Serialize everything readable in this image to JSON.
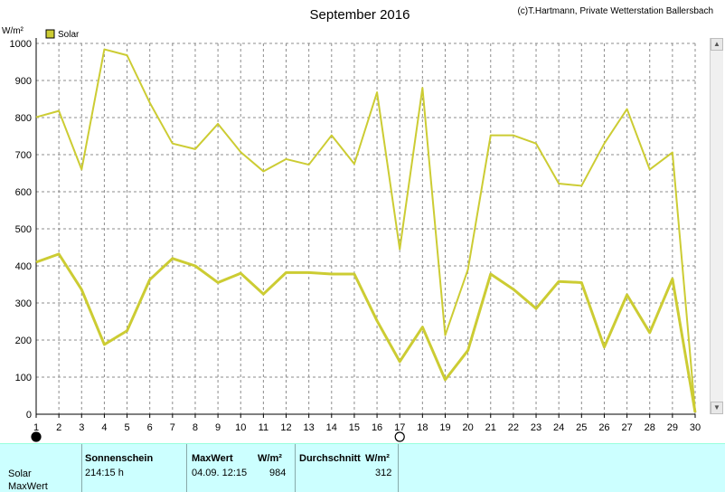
{
  "header": {
    "title": "September 2016",
    "copyright": "(c)T.Hartmann, Private Wetterstation Ballersbach",
    "unit": "W/m²"
  },
  "legend": {
    "label": "Solar",
    "color": "#cccc33"
  },
  "colors": {
    "series": "#cccc33",
    "grid": "#8c8c8c"
  },
  "chart_data": {
    "type": "line",
    "ylabel": "W/m²",
    "ylim": [
      0,
      1000
    ],
    "yticks": [
      0,
      100,
      200,
      300,
      400,
      500,
      600,
      700,
      800,
      900,
      1000
    ],
    "xlim": [
      1,
      30
    ],
    "x": [
      1,
      2,
      3,
      4,
      5,
      6,
      7,
      8,
      9,
      10,
      11,
      12,
      13,
      14,
      15,
      16,
      17,
      18,
      19,
      20,
      21,
      22,
      23,
      24,
      25,
      26,
      27,
      28,
      29,
      30
    ],
    "grid": true,
    "series": [
      {
        "name": "Solar",
        "values": [
          801,
          818,
          660,
          984,
          968,
          840,
          730,
          715,
          783,
          707,
          655,
          688,
          673,
          752,
          675,
          868,
          445,
          880,
          213,
          390,
          752,
          752,
          730,
          622,
          616,
          730,
          823,
          660,
          706,
          5
        ]
      },
      {
        "name": "Solar",
        "values": [
          410,
          432,
          336,
          188,
          225,
          363,
          420,
          400,
          355,
          380,
          324,
          382,
          382,
          378,
          378,
          252,
          142,
          235,
          93,
          172,
          378,
          337,
          285,
          358,
          355,
          181,
          322,
          220,
          365,
          5
        ]
      }
    ],
    "markers": [
      {
        "x": 1,
        "symbol": "filled-moon"
      },
      {
        "x": 17,
        "symbol": "open-moon"
      }
    ]
  },
  "stats": {
    "row_label": "Solar",
    "row_label2": "MaxWert",
    "sunshine_header": "Sonnenschein",
    "sunshine_value": "214:15 h",
    "max_header": "MaxWert",
    "max_unit": "W/m²",
    "max_datetime": "04.09.  12:15",
    "max_value": "984",
    "avg_header": "Durchschnitt",
    "avg_unit": "W/m²",
    "avg_value": "312"
  }
}
